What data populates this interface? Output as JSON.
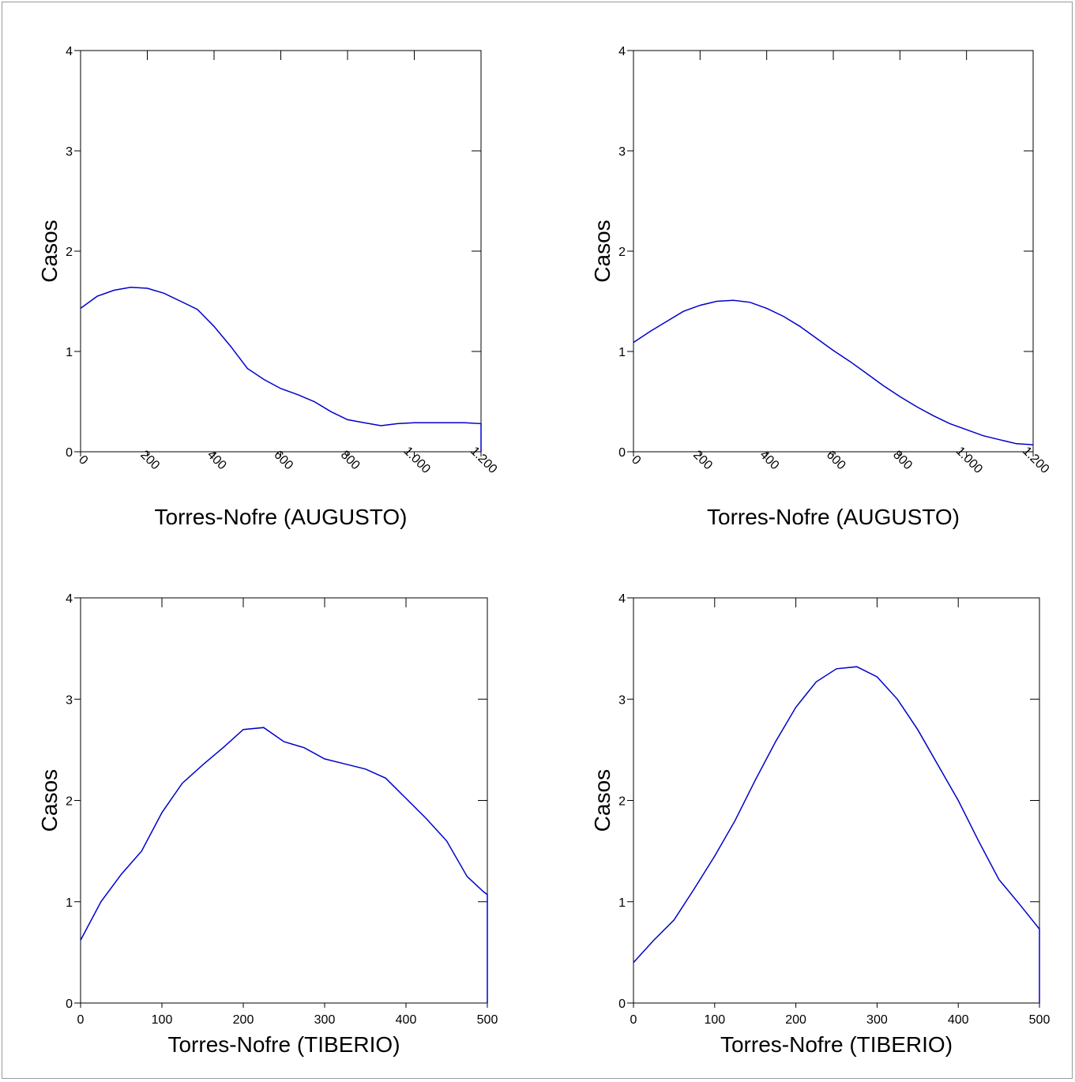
{
  "chart_data": [
    {
      "type": "line",
      "xlabel": "Torres-Nofre (AUGUSTO)",
      "ylabel": "Casos",
      "color": "#0000cc",
      "xlim": [
        0,
        1200
      ],
      "xticks": [
        0,
        200,
        400,
        600,
        800,
        {
          "value": 1000,
          "label": "1.000"
        },
        {
          "value": 1200,
          "label": "1.200"
        }
      ],
      "xtick_label_rotation": 45,
      "ylim": [
        0,
        4
      ],
      "yticks": [
        0,
        1,
        2,
        3,
        4
      ],
      "x": [
        0,
        50,
        100,
        150,
        200,
        250,
        300,
        350,
        400,
        450,
        500,
        550,
        600,
        650,
        700,
        750,
        800,
        850,
        900,
        950,
        1000,
        1050,
        1100,
        1150,
        1200,
        1200
      ],
      "values": [
        1.43,
        1.55,
        1.61,
        1.64,
        1.63,
        1.58,
        1.5,
        1.42,
        1.25,
        1.05,
        0.83,
        0.72,
        0.63,
        0.57,
        0.5,
        0.4,
        0.32,
        0.29,
        0.26,
        0.28,
        0.29,
        0.29,
        0.29,
        0.29,
        0.28,
        0
      ]
    },
    {
      "type": "line",
      "xlabel": "Torres-Nofre (AUGUSTO)",
      "ylabel": "Casos",
      "color": "#0000cc",
      "xlim": [
        0,
        1200
      ],
      "xticks": [
        0,
        200,
        400,
        600,
        800,
        {
          "value": 1000,
          "label": "1.000"
        },
        {
          "value": 1200,
          "label": "1.200"
        }
      ],
      "xtick_label_rotation": 45,
      "ylim": [
        0,
        4
      ],
      "yticks": [
        0,
        1,
        2,
        3,
        4
      ],
      "x": [
        0,
        50,
        100,
        150,
        200,
        250,
        300,
        350,
        400,
        450,
        500,
        550,
        600,
        650,
        700,
        750,
        800,
        850,
        900,
        950,
        1000,
        1050,
        1100,
        1150,
        1200
      ],
      "values": [
        1.09,
        1.2,
        1.3,
        1.4,
        1.46,
        1.5,
        1.51,
        1.49,
        1.43,
        1.35,
        1.25,
        1.13,
        1.01,
        0.9,
        0.78,
        0.66,
        0.55,
        0.45,
        0.36,
        0.28,
        0.22,
        0.16,
        0.12,
        0.08,
        0.07
      ]
    },
    {
      "type": "line",
      "xlabel": "Torres-Nofre (TIBERIO)",
      "ylabel": "Casos",
      "color": "#0000cc",
      "xlim": [
        0,
        500
      ],
      "xticks": [
        0,
        100,
        200,
        300,
        400,
        500
      ],
      "ylim": [
        0,
        4
      ],
      "yticks": [
        0,
        1,
        2,
        3,
        4
      ],
      "x": [
        0,
        25,
        50,
        75,
        100,
        125,
        150,
        175,
        200,
        225,
        250,
        275,
        300,
        325,
        350,
        375,
        400,
        425,
        450,
        475,
        495,
        500,
        500
      ],
      "values": [
        0.62,
        1.0,
        1.27,
        1.5,
        1.88,
        2.17,
        2.35,
        2.52,
        2.7,
        2.72,
        2.58,
        2.52,
        2.41,
        2.36,
        2.31,
        2.22,
        2.02,
        1.82,
        1.6,
        1.25,
        1.1,
        1.07,
        0
      ]
    },
    {
      "type": "line",
      "xlabel": "Torres-Nofre (TIBERIO)",
      "ylabel": "Casos",
      "color": "#0000cc",
      "xlim": [
        0,
        500
      ],
      "xticks": [
        0,
        100,
        200,
        300,
        400,
        500
      ],
      "ylim": [
        0,
        4
      ],
      "yticks": [
        0,
        1,
        2,
        3,
        4
      ],
      "x": [
        0,
        25,
        50,
        75,
        100,
        125,
        150,
        175,
        200,
        225,
        250,
        275,
        300,
        325,
        350,
        375,
        400,
        425,
        450,
        475,
        500,
        500
      ],
      "values": [
        0.4,
        0.62,
        0.82,
        1.13,
        1.45,
        1.8,
        2.2,
        2.58,
        2.92,
        3.17,
        3.3,
        3.32,
        3.22,
        3.0,
        2.7,
        2.35,
        2.0,
        1.6,
        1.22,
        0.98,
        0.73,
        0
      ]
    }
  ]
}
